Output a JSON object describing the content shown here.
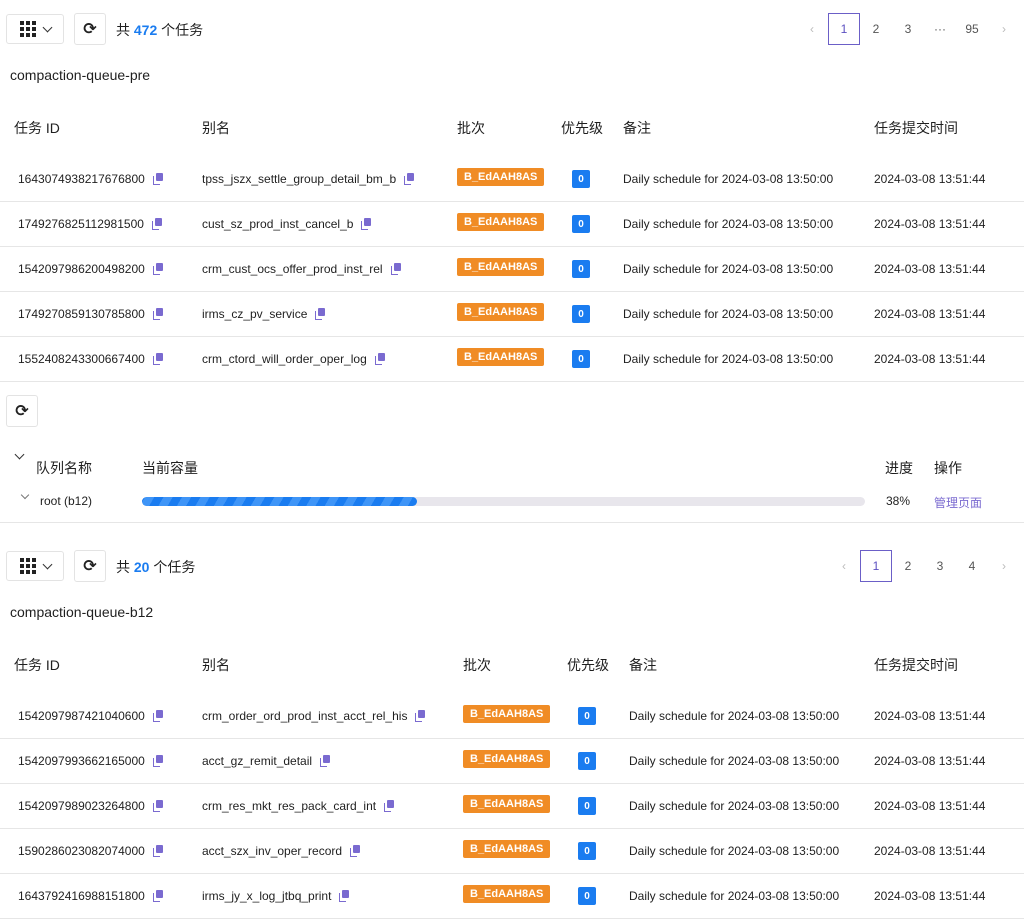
{
  "section1": {
    "total_prefix": "共",
    "total_count": "472",
    "total_suffix": "个任务",
    "pages": [
      "1",
      "2",
      "3",
      "···",
      "95"
    ],
    "queue_name": "compaction-queue-pre",
    "columns": [
      "任务 ID",
      "别名",
      "批次",
      "优先级",
      "备注",
      "任务提交时间"
    ],
    "rows": [
      {
        "id": "1643074938217676800",
        "alias": "tpss_jszx_settle_group_detail_bm_b",
        "batch": "B_EdAAH8AS",
        "priority": "0",
        "note": "Daily schedule for 2024-03-08 13:50:00",
        "time": "2024-03-08 13:51:44"
      },
      {
        "id": "1749276825112981500",
        "alias": "cust_sz_prod_inst_cancel_b",
        "batch": "B_EdAAH8AS",
        "priority": "0",
        "note": "Daily schedule for 2024-03-08 13:50:00",
        "time": "2024-03-08 13:51:44"
      },
      {
        "id": "1542097986200498200",
        "alias": "crm_cust_ocs_offer_prod_inst_rel",
        "batch": "B_EdAAH8AS",
        "priority": "0",
        "note": "Daily schedule for 2024-03-08 13:50:00",
        "time": "2024-03-08 13:51:44"
      },
      {
        "id": "1749270859130785800",
        "alias": "irms_cz_pv_service",
        "batch": "B_EdAAH8AS",
        "priority": "0",
        "note": "Daily schedule for 2024-03-08 13:50:00",
        "time": "2024-03-08 13:51:44"
      },
      {
        "id": "1552408243300667400",
        "alias": "crm_ctord_will_order_oper_log",
        "batch": "B_EdAAH8AS",
        "priority": "0",
        "note": "Daily schedule for 2024-03-08 13:50:00",
        "time": "2024-03-08 13:51:44"
      }
    ]
  },
  "capacity": {
    "columns": [
      "队列名称",
      "当前容量",
      "进度",
      "操作"
    ],
    "row": {
      "name": "root (b12)",
      "progress": 38,
      "progress_label": "38%",
      "action": "管理页面"
    }
  },
  "section2": {
    "total_prefix": "共",
    "total_count": "20",
    "total_suffix": "个任务",
    "pages": [
      "1",
      "2",
      "3",
      "4"
    ],
    "queue_name": "compaction-queue-b12",
    "columns": [
      "任务 ID",
      "别名",
      "批次",
      "优先级",
      "备注",
      "任务提交时间"
    ],
    "rows": [
      {
        "id": "1542097987421040600",
        "alias": "crm_order_ord_prod_inst_acct_rel_his",
        "batch": "B_EdAAH8AS",
        "priority": "0",
        "note": "Daily schedule for 2024-03-08 13:50:00",
        "time": "2024-03-08 13:51:44"
      },
      {
        "id": "1542097993662165000",
        "alias": "acct_gz_remit_detail",
        "batch": "B_EdAAH8AS",
        "priority": "0",
        "note": "Daily schedule for 2024-03-08 13:50:00",
        "time": "2024-03-08 13:51:44"
      },
      {
        "id": "1542097989023264800",
        "alias": "crm_res_mkt_res_pack_card_int",
        "batch": "B_EdAAH8AS",
        "priority": "0",
        "note": "Daily schedule for 2024-03-08 13:50:00",
        "time": "2024-03-08 13:51:44"
      },
      {
        "id": "1590286023082074000",
        "alias": "acct_szx_inv_oper_record",
        "batch": "B_EdAAH8AS",
        "priority": "0",
        "note": "Daily schedule for 2024-03-08 13:50:00",
        "time": "2024-03-08 13:51:44"
      },
      {
        "id": "1643792416988151800",
        "alias": "irms_jy_x_log_jtbq_print",
        "batch": "B_EdAAH8AS",
        "priority": "0",
        "note": "Daily schedule for 2024-03-08 13:50:00",
        "time": "2024-03-08 13:51:44"
      }
    ]
  },
  "colors": {
    "accent": "#1a7cf0",
    "badge": "#f08c25",
    "link": "#7a6ad0"
  }
}
